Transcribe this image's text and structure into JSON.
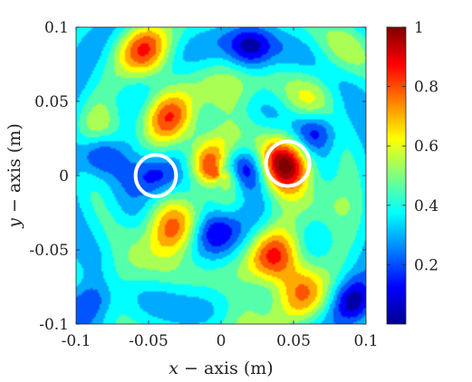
{
  "chart_data": {
    "type": "heatmap",
    "title": "",
    "xlabel_var": "x",
    "xlabel_rest": " − axis (m)",
    "ylabel_var": "y",
    "ylabel_rest": " − axis (m)",
    "xlim": [
      -0.1,
      0.1
    ],
    "ylim": [
      -0.1,
      0.1
    ],
    "x_ticks": [
      "-0.1",
      "-0.05",
      "0",
      "0.05",
      "0.1"
    ],
    "x_tick_values": [
      -0.1,
      -0.05,
      0,
      0.05,
      0.1
    ],
    "y_ticks": [
      "0.1",
      "0.05",
      "0",
      "-0.05",
      "-0.1"
    ],
    "y_tick_values": [
      0.1,
      0.05,
      0,
      -0.05,
      -0.1
    ],
    "colorbar": {
      "range": [
        0,
        1
      ],
      "colormap": "jet",
      "ticks": [
        "1",
        "0.8",
        "0.6",
        "0.4",
        "0.2"
      ],
      "tick_values": [
        1,
        0.8,
        0.6,
        0.4,
        0.2
      ]
    },
    "grid": false,
    "background_value": 0.35,
    "field_peaks": [
      {
        "x": 0.044,
        "y": 0.007,
        "value": 0.98
      },
      {
        "x": -0.052,
        "y": 0.083,
        "value": 0.8
      },
      {
        "x": -0.034,
        "y": 0.038,
        "value": 0.78
      },
      {
        "x": -0.035,
        "y": -0.038,
        "value": 0.85
      },
      {
        "x": -0.005,
        "y": 0.005,
        "value": 0.78
      },
      {
        "x": 0.038,
        "y": -0.055,
        "value": 0.8
      },
      {
        "x": 0.055,
        "y": -0.078,
        "value": 0.7
      },
      {
        "x": 0.005,
        "y": 0.05,
        "value": 0.6
      },
      {
        "x": 0.06,
        "y": 0.05,
        "value": 0.55
      },
      {
        "x": -0.08,
        "y": 0.03,
        "value": 0.55
      },
      {
        "x": 0.07,
        "y": -0.02,
        "value": 0.55
      },
      {
        "x": -0.07,
        "y": -0.07,
        "value": 0.5
      },
      {
        "x": 0.015,
        "y": -0.09,
        "value": 0.55
      },
      {
        "x": 0.085,
        "y": 0.085,
        "value": 0.5
      }
    ],
    "field_dips": [
      {
        "x": -0.045,
        "y": 0.0,
        "value": 0.05
      },
      {
        "x": 0.016,
        "y": 0.003,
        "value": 0.05
      },
      {
        "x": -0.005,
        "y": -0.035,
        "value": 0.08
      },
      {
        "x": -0.085,
        "y": 0.015,
        "value": 0.05
      },
      {
        "x": 0.065,
        "y": 0.03,
        "value": 0.08
      },
      {
        "x": 0.02,
        "y": 0.085,
        "value": 0.1
      },
      {
        "x": 0.092,
        "y": -0.085,
        "value": 0.1
      },
      {
        "x": -0.09,
        "y": -0.085,
        "value": 0.08
      }
    ],
    "markers": [
      {
        "type": "circle",
        "x": -0.045,
        "y": 0.0,
        "radius": 0.014,
        "color": "#ffffff"
      },
      {
        "type": "circle",
        "x": 0.046,
        "y": 0.008,
        "radius": 0.015,
        "color": "#ffffff"
      }
    ]
  }
}
